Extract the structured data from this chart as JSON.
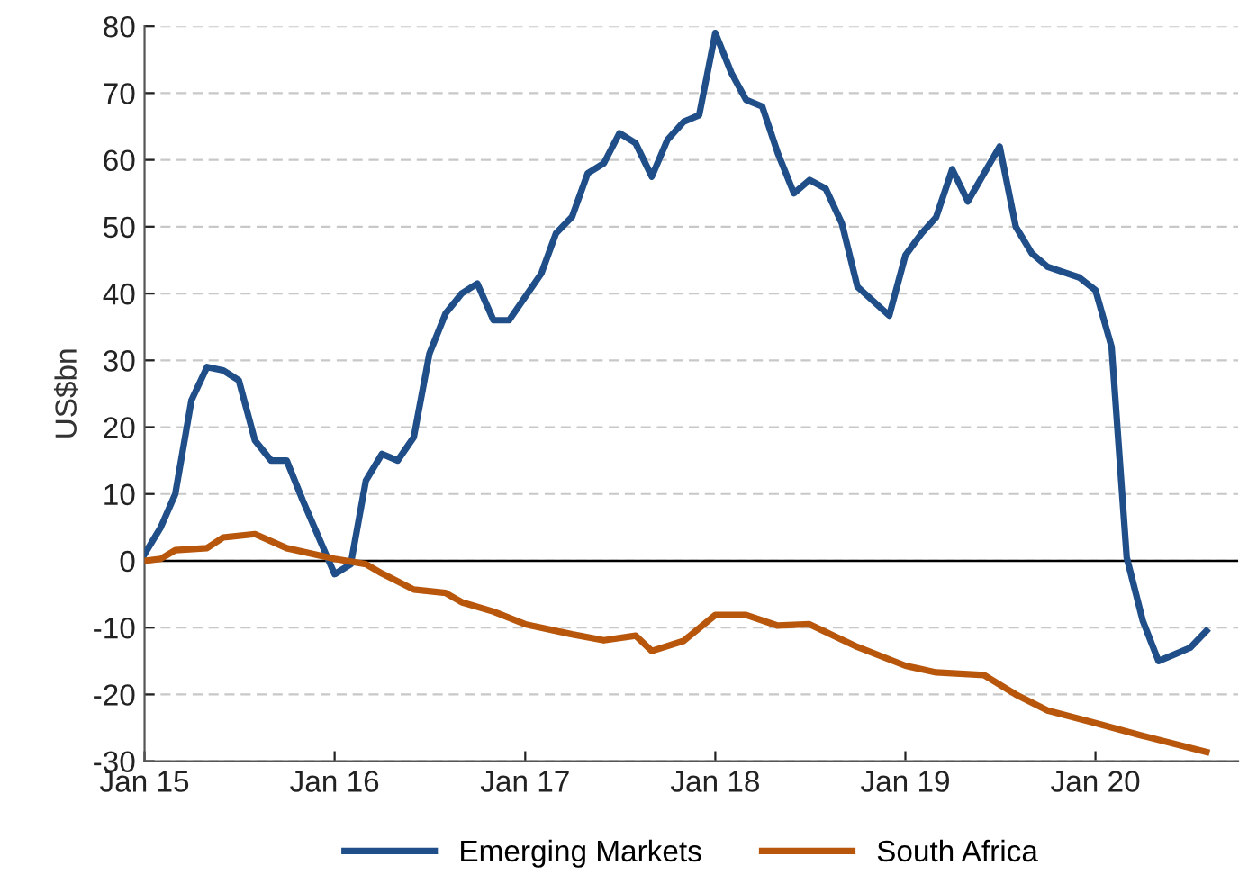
{
  "chart_data": {
    "type": "line",
    "ylabel": "US$bn",
    "x": [
      "2015-01",
      "2015-02",
      "2015-03",
      "2015-04",
      "2015-05",
      "2015-06",
      "2015-07",
      "2015-08",
      "2015-09",
      "2015-10",
      "2015-11",
      "2016-01",
      "2016-02",
      "2016-03",
      "2016-04",
      "2016-05",
      "2016-06",
      "2016-07",
      "2016-08",
      "2016-09",
      "2016-10",
      "2016-11",
      "2016-12",
      "2017-01",
      "2017-02",
      "2017-03",
      "2017-04",
      "2017-05",
      "2017-06",
      "2017-07",
      "2017-08",
      "2017-09",
      "2017-10",
      "2017-11",
      "2017-12",
      "2018-01",
      "2018-02",
      "2018-03",
      "2018-04",
      "2018-05",
      "2018-06",
      "2018-07",
      "2018-08",
      "2018-09",
      "2018-10",
      "2018-12",
      "2019-01",
      "2019-02",
      "2019-03",
      "2019-04",
      "2019-05",
      "2019-07",
      "2019-08",
      "2019-09",
      "2019-10",
      "2019-12",
      "2020-01",
      "2020-02",
      "2020-03",
      "2020-04",
      "2020-05",
      "2020-06",
      "2020-07",
      "2020-08"
    ],
    "series": [
      {
        "name": "Emerging Markets",
        "color": "#1f4e89",
        "values": [
          1,
          5,
          10,
          24,
          29,
          28.5,
          27,
          18,
          15,
          15,
          9,
          -2,
          -0.5,
          12,
          16,
          15,
          18.5,
          31,
          37,
          40,
          41.5,
          36,
          36,
          39.5,
          43,
          49,
          51.5,
          58,
          59.5,
          64,
          62.5,
          57.5,
          63,
          65.7,
          66.7,
          79,
          73,
          69,
          68,
          61,
          55,
          57,
          55.7,
          50.5,
          41,
          36.7,
          45.7,
          49,
          51.4,
          58.6,
          53.8,
          62,
          50,
          46,
          44,
          42.4,
          40.5,
          32,
          0.5,
          -9,
          -15,
          -14,
          -13,
          -10.5
        ]
      },
      {
        "name": "South Africa",
        "color": "#b8560c",
        "x": [
          "2015-01",
          "2015-02",
          "2015-03",
          "2015-05",
          "2015-06",
          "2015-08",
          "2015-10",
          "2016-01",
          "2016-03",
          "2016-04",
          "2016-06",
          "2016-08",
          "2016-09",
          "2016-11",
          "2017-01",
          "2017-04",
          "2017-06",
          "2017-08",
          "2017-09",
          "2017-11",
          "2018-01",
          "2018-03",
          "2018-05",
          "2018-07",
          "2018-10",
          "2019-01",
          "2019-03",
          "2019-06",
          "2019-08",
          "2019-10",
          "2020-01",
          "2020-04",
          "2020-08"
        ],
        "values": [
          0,
          0.3,
          1.6,
          1.9,
          3.5,
          4,
          1.9,
          0.3,
          -0.5,
          -1.9,
          -4.3,
          -4.8,
          -6.2,
          -7.6,
          -9.5,
          -11,
          -11.9,
          -11.2,
          -13.5,
          -12,
          -8.1,
          -8.1,
          -9.7,
          -9.5,
          -12.9,
          -15.7,
          -16.7,
          -17.1,
          -20,
          -22.4,
          -24.3,
          -26.2,
          -28.6
        ]
      }
    ],
    "xlim": [
      "2015-01",
      "2020-10"
    ],
    "xticks": [
      {
        "value": "2015-01",
        "label": "Jan 15"
      },
      {
        "value": "2016-01",
        "label": "Jan 16"
      },
      {
        "value": "2017-01",
        "label": "Jan 17"
      },
      {
        "value": "2018-01",
        "label": "Jan 18"
      },
      {
        "value": "2019-01",
        "label": "Jan 19"
      },
      {
        "value": "2020-01",
        "label": "Jan 20"
      }
    ],
    "ylim": [
      -30,
      80
    ],
    "yticks": [
      -30,
      -20,
      -10,
      0,
      10,
      20,
      30,
      40,
      50,
      60,
      70,
      80
    ],
    "ref_lines": [
      {
        "axis": "y",
        "value": 0,
        "color": "#000000"
      }
    ],
    "grid": "y",
    "legend": "bottom",
    "line_style": "solid",
    "marker": "none"
  }
}
